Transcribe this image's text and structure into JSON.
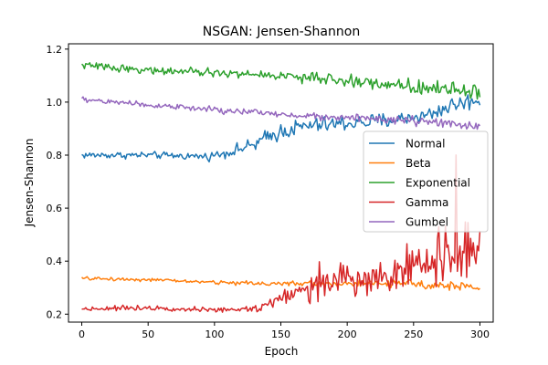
{
  "chart_data": {
    "type": "line",
    "title": "NSGAN: Jensen-Shannon",
    "xlabel": "Epoch",
    "ylabel": "Jensen-Shannon",
    "xlim": [
      -10,
      310
    ],
    "ylim": [
      0.17,
      1.22
    ],
    "x_ticks": [
      0,
      50,
      100,
      150,
      200,
      250,
      300
    ],
    "x_tick_labels": [
      "0",
      "50",
      "100",
      "150",
      "200",
      "250",
      "300"
    ],
    "y_ticks": [
      0.2,
      0.4,
      0.6,
      0.8,
      1.0,
      1.2
    ],
    "y_tick_labels": [
      "0.2",
      "0.4",
      "0.6",
      "0.8",
      "1.0",
      "1.2"
    ],
    "grid": false,
    "legend_position": "center-right",
    "x_step": 1,
    "x_count": 301,
    "series": [
      {
        "name": "Normal",
        "color": "#1f77b4",
        "anchors": [
          [
            0,
            0.8
          ],
          [
            50,
            0.8
          ],
          [
            95,
            0.795
          ],
          [
            110,
            0.81
          ],
          [
            130,
            0.84
          ],
          [
            150,
            0.89
          ],
          [
            170,
            0.91
          ],
          [
            200,
            0.92
          ],
          [
            230,
            0.93
          ],
          [
            260,
            0.95
          ],
          [
            280,
            0.99
          ],
          [
            300,
            1.01
          ]
        ],
        "noise": [
          0.012,
          0.012,
          0.015,
          0.02,
          0.03,
          0.03,
          0.028,
          0.028,
          0.025,
          0.03,
          0.03
        ]
      },
      {
        "name": "Beta",
        "color": "#ff7f0e",
        "anchors": [
          [
            0,
            0.335
          ],
          [
            50,
            0.33
          ],
          [
            100,
            0.32
          ],
          [
            150,
            0.315
          ],
          [
            200,
            0.315
          ],
          [
            250,
            0.315
          ],
          [
            300,
            0.3
          ]
        ],
        "noise": [
          0.006,
          0.006,
          0.008,
          0.01,
          0.012,
          0.014
        ]
      },
      {
        "name": "Exponential",
        "color": "#2ca02c",
        "anchors": [
          [
            0,
            1.14
          ],
          [
            50,
            1.12
          ],
          [
            100,
            1.11
          ],
          [
            150,
            1.1
          ],
          [
            200,
            1.08
          ],
          [
            250,
            1.06
          ],
          [
            300,
            1.04
          ]
        ],
        "noise": [
          0.012,
          0.014,
          0.015,
          0.018,
          0.022,
          0.03
        ]
      },
      {
        "name": "Gamma",
        "color": "#d62728",
        "anchors": [
          [
            0,
            0.22
          ],
          [
            50,
            0.225
          ],
          [
            100,
            0.215
          ],
          [
            130,
            0.22
          ],
          [
            150,
            0.26
          ],
          [
            170,
            0.3
          ],
          [
            200,
            0.33
          ],
          [
            230,
            0.35
          ],
          [
            260,
            0.4
          ],
          [
            300,
            0.45
          ]
        ],
        "noise": [
          0.008,
          0.008,
          0.01,
          0.02,
          0.03,
          0.05,
          0.06,
          0.08,
          0.12
        ]
      },
      {
        "name": "Gumbel",
        "color": "#9467bd",
        "anchors": [
          [
            0,
            1.01
          ],
          [
            50,
            0.99
          ],
          [
            100,
            0.97
          ],
          [
            150,
            0.955
          ],
          [
            200,
            0.94
          ],
          [
            250,
            0.93
          ],
          [
            300,
            0.905
          ]
        ],
        "noise": [
          0.01,
          0.012,
          0.012,
          0.012,
          0.014,
          0.015
        ]
      }
    ]
  }
}
